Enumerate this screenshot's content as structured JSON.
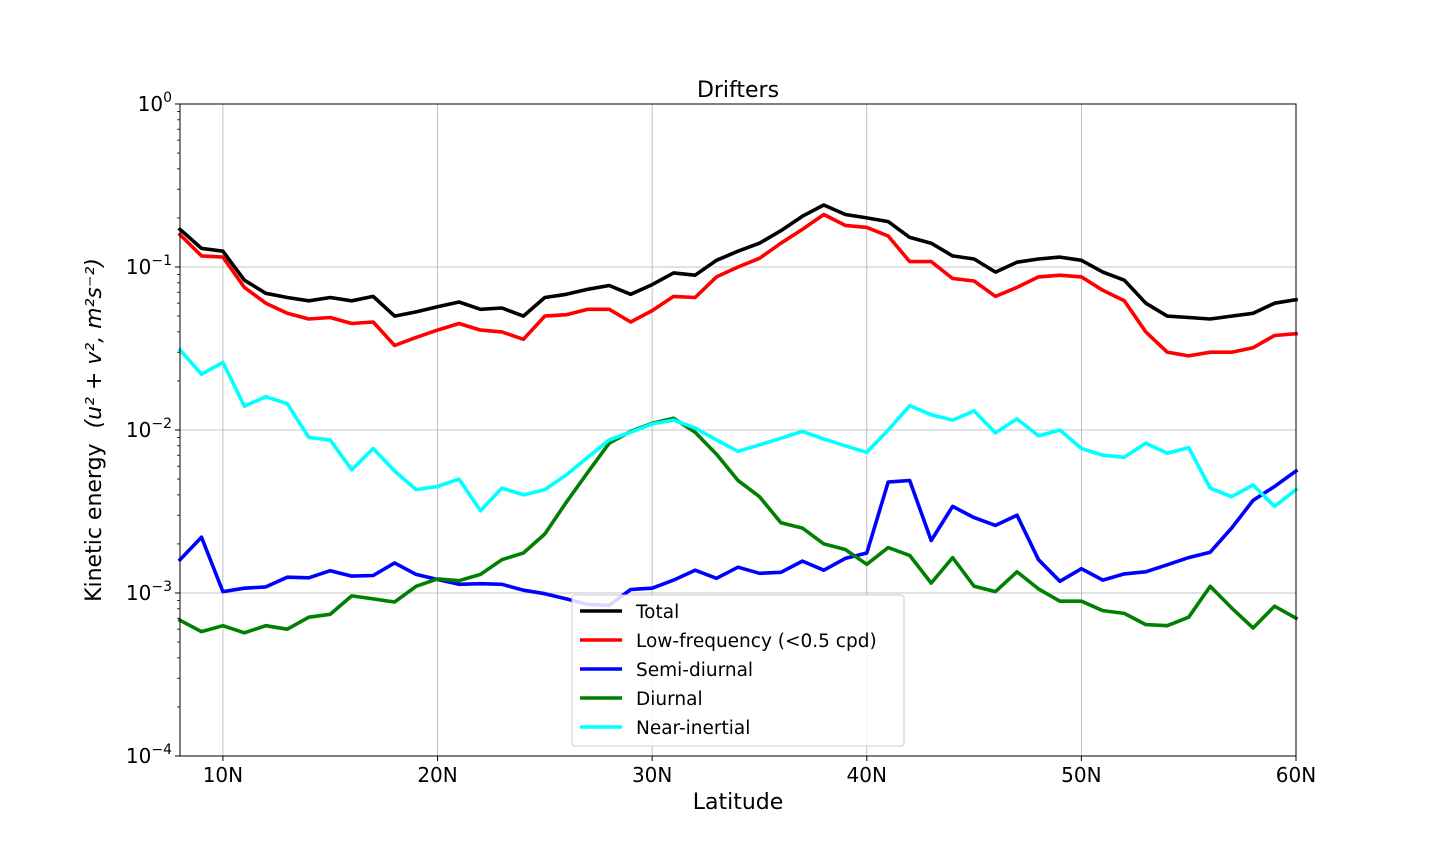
{
  "chart_data": {
    "type": "line",
    "title": "Drifters",
    "xlabel": "Latitude",
    "ylabel": "Kinetic energy",
    "ylabel_units": "(u² + v², m²s⁻²)",
    "xlim": [
      8,
      60
    ],
    "ylim": [
      0.0001,
      1
    ],
    "yscale": "log",
    "grid": true,
    "legend_position": "lower-center",
    "x_ticks": [
      10,
      20,
      30,
      40,
      50,
      60
    ],
    "x_tick_labels": [
      "10N",
      "20N",
      "30N",
      "40N",
      "50N",
      "60N"
    ],
    "y_ticks": [
      0.0001,
      0.001,
      0.01,
      0.1,
      1
    ],
    "y_tick_labels": [
      {
        "base": "10",
        "exp": "−4"
      },
      {
        "base": "10",
        "exp": "−3"
      },
      {
        "base": "10",
        "exp": "−2"
      },
      {
        "base": "10",
        "exp": "−1"
      },
      {
        "base": "10",
        "exp": "0"
      }
    ],
    "x": [
      8,
      9,
      10,
      11,
      12,
      13,
      14,
      15,
      16,
      17,
      18,
      19,
      20,
      21,
      22,
      23,
      24,
      25,
      26,
      27,
      28,
      29,
      30,
      31,
      32,
      33,
      34,
      35,
      36,
      37,
      38,
      39,
      40,
      41,
      42,
      43,
      44,
      45,
      46,
      47,
      48,
      49,
      50,
      51,
      52,
      53,
      54,
      55,
      56,
      57,
      58,
      59,
      60
    ],
    "series": [
      {
        "name": "Total",
        "color": "#000000",
        "values": [
          0.17,
          0.13,
          0.125,
          0.083,
          0.069,
          0.065,
          0.062,
          0.065,
          0.062,
          0.066,
          0.05,
          0.053,
          0.057,
          0.061,
          0.055,
          0.056,
          0.05,
          0.065,
          0.068,
          0.073,
          0.077,
          0.068,
          0.078,
          0.092,
          0.089,
          0.11,
          0.125,
          0.14,
          0.167,
          0.205,
          0.24,
          0.21,
          0.2,
          0.19,
          0.152,
          0.14,
          0.117,
          0.112,
          0.093,
          0.107,
          0.112,
          0.115,
          0.11,
          0.093,
          0.083,
          0.06,
          0.05,
          0.049,
          0.048,
          0.05,
          0.052,
          0.06,
          0.063
        ]
      },
      {
        "name": "Low-frequency (<0.5 cpd)",
        "color": "#ff0000",
        "values": [
          0.158,
          0.117,
          0.115,
          0.075,
          0.06,
          0.052,
          0.048,
          0.049,
          0.045,
          0.046,
          0.033,
          0.037,
          0.041,
          0.045,
          0.041,
          0.04,
          0.036,
          0.05,
          0.051,
          0.055,
          0.055,
          0.046,
          0.054,
          0.066,
          0.065,
          0.087,
          0.1,
          0.113,
          0.14,
          0.17,
          0.21,
          0.18,
          0.175,
          0.155,
          0.108,
          0.108,
          0.085,
          0.082,
          0.066,
          0.075,
          0.087,
          0.089,
          0.087,
          0.072,
          0.062,
          0.04,
          0.03,
          0.0285,
          0.03,
          0.03,
          0.032,
          0.038,
          0.039
        ]
      },
      {
        "name": "Semi-diurnal",
        "color": "#0000ff",
        "values": [
          0.0016,
          0.0022,
          0.00102,
          0.00107,
          0.00109,
          0.00125,
          0.00124,
          0.00137,
          0.00127,
          0.00128,
          0.00153,
          0.0013,
          0.00121,
          0.00113,
          0.00114,
          0.00113,
          0.00104,
          0.00099,
          0.00092,
          0.00085,
          0.00084,
          0.00105,
          0.00107,
          0.0012,
          0.00138,
          0.00123,
          0.00144,
          0.00132,
          0.00134,
          0.00157,
          0.00138,
          0.00163,
          0.00176,
          0.0048,
          0.0049,
          0.0021,
          0.0034,
          0.0029,
          0.0026,
          0.003,
          0.0016,
          0.00118,
          0.00141,
          0.0012,
          0.00131,
          0.00135,
          0.00149,
          0.00165,
          0.00178,
          0.0025,
          0.0037,
          0.0045,
          0.0056
        ]
      },
      {
        "name": "Diurnal",
        "color": "#008000",
        "values": [
          0.00068,
          0.00058,
          0.00063,
          0.00057,
          0.00063,
          0.0006,
          0.00071,
          0.00074,
          0.00096,
          0.00092,
          0.00088,
          0.0011,
          0.00122,
          0.00119,
          0.0013,
          0.0016,
          0.00176,
          0.0023,
          0.0036,
          0.0055,
          0.0083,
          0.0098,
          0.011,
          0.0118,
          0.0097,
          0.0071,
          0.0049,
          0.0039,
          0.0027,
          0.0025,
          0.002,
          0.00185,
          0.0015,
          0.0019,
          0.0017,
          0.00115,
          0.00165,
          0.0011,
          0.00102,
          0.00135,
          0.00106,
          0.00089,
          0.00089,
          0.00078,
          0.00075,
          0.00064,
          0.00063,
          0.00071,
          0.0011,
          0.00081,
          0.00061,
          0.00083,
          0.0007
        ]
      },
      {
        "name": "Near-inertial",
        "color": "#00ffff",
        "values": [
          0.031,
          0.022,
          0.026,
          0.014,
          0.016,
          0.0145,
          0.009,
          0.0087,
          0.0057,
          0.0077,
          0.0056,
          0.0043,
          0.0045,
          0.005,
          0.0032,
          0.0044,
          0.004,
          0.0043,
          0.0053,
          0.0068,
          0.0087,
          0.0097,
          0.0109,
          0.0115,
          0.0103,
          0.0087,
          0.0074,
          0.0081,
          0.0089,
          0.0098,
          0.0088,
          0.008,
          0.0073,
          0.01,
          0.0141,
          0.0124,
          0.0115,
          0.0131,
          0.0096,
          0.0117,
          0.0092,
          0.01,
          0.0077,
          0.007,
          0.0068,
          0.0083,
          0.0072,
          0.0078,
          0.0044,
          0.0039,
          0.0046,
          0.0034,
          0.0043
        ]
      }
    ]
  }
}
